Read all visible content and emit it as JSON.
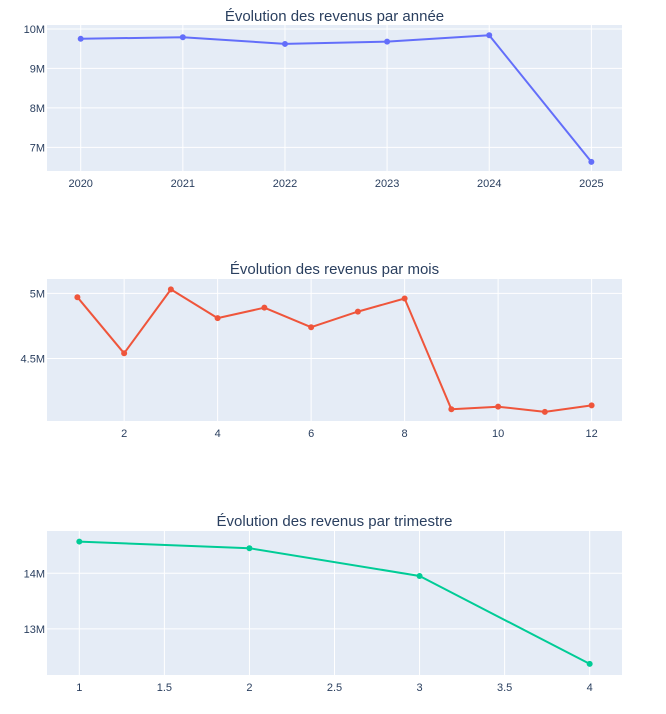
{
  "chart_data": [
    {
      "type": "line",
      "title": "Évolution des revenus par année",
      "x": [
        2020,
        2021,
        2022,
        2023,
        2024,
        2025
      ],
      "x_tick_values": [
        2020,
        2021,
        2022,
        2023,
        2024,
        2025
      ],
      "x_tick_labels": [
        "2020",
        "2021",
        "2022",
        "2023",
        "2024",
        "2025"
      ],
      "xlim": [
        2019.67,
        2025.3
      ],
      "series": [
        {
          "values": [
            9750000,
            9790000,
            9620000,
            9680000,
            9840000,
            6630000
          ],
          "color": "#636efa"
        }
      ],
      "y_tick_values": [
        7000000,
        8000000,
        9000000,
        10000000
      ],
      "y_tick_labels": [
        "7M",
        "8M",
        "9M",
        "10M"
      ],
      "ylim": [
        6400000,
        10100000
      ],
      "grid": true
    },
    {
      "type": "line",
      "title": "Évolution des revenus par mois",
      "x": [
        1,
        2,
        3,
        4,
        5,
        6,
        7,
        8,
        9,
        10,
        11,
        12
      ],
      "x_tick_values": [
        2,
        4,
        6,
        8,
        10,
        12
      ],
      "x_tick_labels": [
        "2",
        "4",
        "6",
        "8",
        "10",
        "12"
      ],
      "xlim": [
        0.35,
        12.65
      ],
      "series": [
        {
          "values": [
            4970000,
            4540000,
            5030000,
            4810000,
            4890000,
            4740000,
            4860000,
            4960000,
            4110000,
            4130000,
            4090000,
            4140000
          ],
          "color": "#ef553b"
        }
      ],
      "y_tick_values": [
        4500000,
        5000000
      ],
      "y_tick_labels": [
        "4.5M",
        "5M"
      ],
      "ylim": [
        4020000,
        5110000
      ],
      "grid": true
    },
    {
      "type": "line",
      "title": "Évolution des revenus par trimestre",
      "x": [
        1,
        2,
        3,
        4
      ],
      "x_tick_values": [
        1,
        1.5,
        2,
        2.5,
        3,
        3.5,
        4
      ],
      "x_tick_labels": [
        "1",
        "1.5",
        "2",
        "2.5",
        "3",
        "3.5",
        "4"
      ],
      "xlim": [
        0.81,
        4.19
      ],
      "series": [
        {
          "values": [
            14570000,
            14450000,
            13950000,
            12370000
          ],
          "color": "#00cc96"
        }
      ],
      "y_tick_values": [
        13000000,
        14000000
      ],
      "y_tick_labels": [
        "13M",
        "14M"
      ],
      "ylim": [
        12170000,
        14760000
      ],
      "grid": true
    }
  ]
}
